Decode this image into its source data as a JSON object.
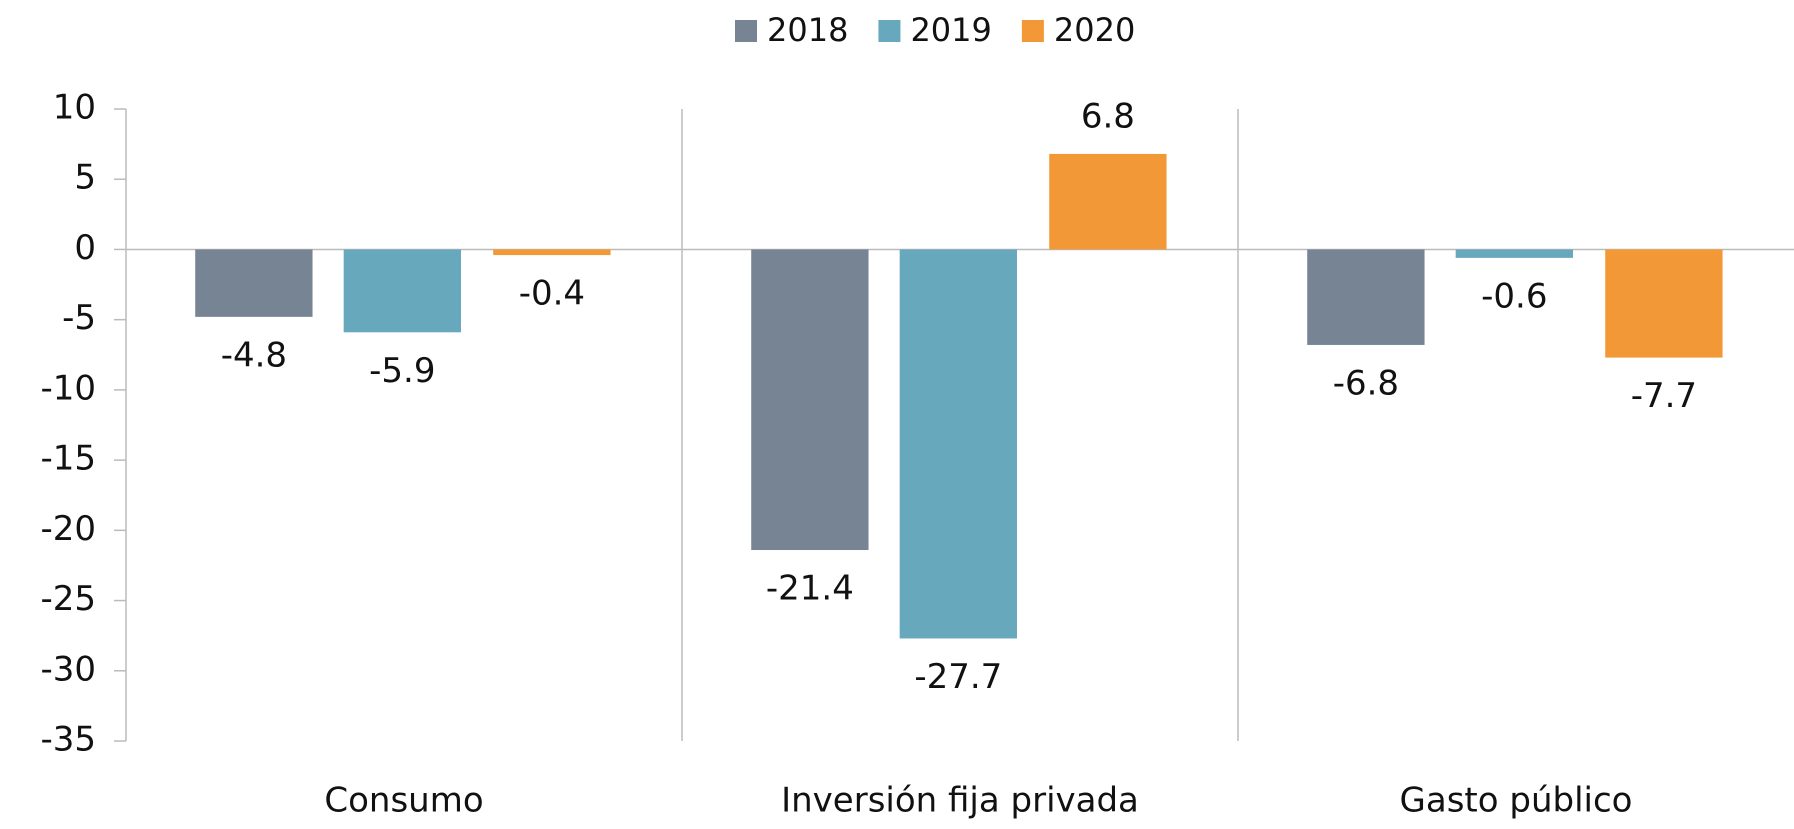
{
  "chart_data": {
    "type": "bar",
    "categories": [
      "Consumo",
      "Inversión fija privada",
      "Gasto público"
    ],
    "series": [
      {
        "name": "2018",
        "color": "#778494",
        "values": [
          -4.8,
          -21.4,
          -6.8
        ]
      },
      {
        "name": "2019",
        "color": "#68a8bd",
        "values": [
          -5.9,
          -27.7,
          -0.6
        ]
      },
      {
        "name": "2020",
        "color": "#f39836",
        "values": [
          -0.4,
          6.8,
          -7.7
        ]
      }
    ],
    "ylim": [
      -35,
      10
    ],
    "yticks": [
      -35,
      -30,
      -25,
      -20,
      -15,
      -10,
      -5,
      0,
      5,
      10
    ],
    "legend": "top",
    "grid": false
  }
}
